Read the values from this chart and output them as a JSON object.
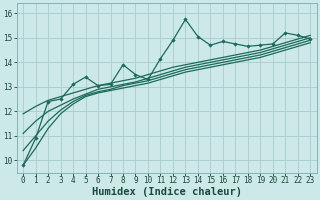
{
  "xlabel": "Humidex (Indice chaleur)",
  "bg_color": "#cde8e8",
  "grid_color": "#aacccc",
  "line_color": "#1a6b5a",
  "xlim": [
    -0.5,
    23.5
  ],
  "ylim": [
    9.5,
    16.4
  ],
  "yticks": [
    10,
    11,
    12,
    13,
    14,
    15,
    16
  ],
  "xticks": [
    0,
    1,
    2,
    3,
    4,
    5,
    6,
    7,
    8,
    9,
    10,
    11,
    12,
    13,
    14,
    15,
    16,
    17,
    18,
    19,
    20,
    21,
    22,
    23
  ],
  "main_line_x": [
    0,
    1,
    2,
    3,
    4,
    5,
    6,
    7,
    8,
    9,
    10,
    11,
    12,
    13,
    14,
    15,
    16,
    17,
    18,
    19,
    20,
    21,
    22,
    23
  ],
  "main_line_y": [
    9.8,
    10.9,
    12.4,
    12.5,
    13.1,
    13.4,
    13.05,
    13.1,
    13.9,
    13.5,
    13.3,
    14.15,
    14.9,
    15.75,
    15.05,
    14.7,
    14.85,
    14.75,
    14.65,
    14.7,
    14.75,
    15.2,
    15.1,
    14.95
  ],
  "curve1_x": [
    0,
    1,
    2,
    3,
    4,
    5,
    6,
    7,
    8,
    9,
    10,
    11,
    12,
    13,
    14,
    15,
    16,
    17,
    18,
    19,
    20,
    21,
    22,
    23
  ],
  "curve1_y": [
    9.8,
    10.5,
    11.3,
    11.9,
    12.3,
    12.6,
    12.75,
    12.85,
    12.95,
    13.05,
    13.15,
    13.3,
    13.45,
    13.6,
    13.7,
    13.8,
    13.9,
    14.0,
    14.1,
    14.2,
    14.35,
    14.5,
    14.65,
    14.8
  ],
  "curve2_x": [
    0,
    1,
    2,
    3,
    4,
    5,
    6,
    7,
    8,
    9,
    10,
    11,
    12,
    13,
    14,
    15,
    16,
    17,
    18,
    19,
    20,
    21,
    22,
    23
  ],
  "curve2_y": [
    10.4,
    11.0,
    11.6,
    12.05,
    12.4,
    12.65,
    12.8,
    12.9,
    13.05,
    13.15,
    13.25,
    13.4,
    13.55,
    13.7,
    13.8,
    13.9,
    14.0,
    14.1,
    14.2,
    14.3,
    14.45,
    14.6,
    14.75,
    14.9
  ],
  "curve3_x": [
    0,
    1,
    2,
    3,
    4,
    5,
    6,
    7,
    8,
    9,
    10,
    11,
    12,
    13,
    14,
    15,
    16,
    17,
    18,
    19,
    20,
    21,
    22,
    23
  ],
  "curve3_y": [
    11.1,
    11.6,
    12.0,
    12.25,
    12.5,
    12.7,
    12.9,
    13.0,
    13.1,
    13.2,
    13.35,
    13.5,
    13.65,
    13.8,
    13.9,
    14.0,
    14.1,
    14.2,
    14.3,
    14.4,
    14.55,
    14.7,
    14.85,
    15.0
  ],
  "curve4_x": [
    0,
    1,
    2,
    3,
    4,
    5,
    6,
    7,
    8,
    9,
    10,
    11,
    12,
    13,
    14,
    15,
    16,
    17,
    18,
    19,
    20,
    21,
    22,
    23
  ],
  "curve4_y": [
    11.9,
    12.2,
    12.45,
    12.6,
    12.75,
    12.9,
    13.05,
    13.15,
    13.25,
    13.35,
    13.5,
    13.65,
    13.8,
    13.9,
    14.0,
    14.1,
    14.2,
    14.3,
    14.4,
    14.5,
    14.65,
    14.8,
    14.95,
    15.1
  ],
  "fontsize_tick": 5.5,
  "fontsize_label": 7.5
}
